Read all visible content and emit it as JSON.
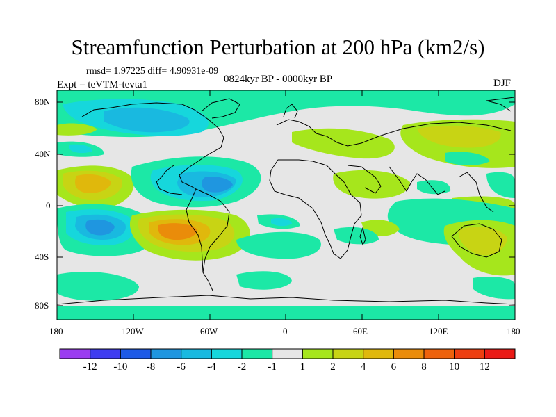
{
  "title": "Streamfunction Perturbation at 200 hPa (km2/s)",
  "stats": "rmsd= 1.97225  diff= 4.90931e-09",
  "period": "0824kyr BP - 0000kyr BP",
  "experiment": "Expt = teVTM-tevta1",
  "season": "DJF",
  "lat_ticks": [
    "80N",
    "40N",
    "0",
    "40S",
    "80S"
  ],
  "lon_ticks": [
    "180",
    "120W",
    "60W",
    "0",
    "60E",
    "120E",
    "180"
  ],
  "colorbar": {
    "labels": [
      "-12",
      "-10",
      "-8",
      "-6",
      "-4",
      "-2",
      "-1",
      "1",
      "2",
      "4",
      "6",
      "8",
      "10",
      "12"
    ],
    "colors": [
      "#9b3cf0",
      "#3f3cf0",
      "#1e5ae6",
      "#1f96e0",
      "#19b9e0",
      "#16d7dc",
      "#1ce8a6",
      "#e6e6e6",
      "#a6e61c",
      "#c8d414",
      "#e0b80c",
      "#ea8c0a",
      "#ee620c",
      "#ee3e10",
      "#ea1a16"
    ]
  },
  "field_colors": {
    "neutral": "#e6e6e6",
    "neg1": "#1ce8a6",
    "neg2": "#16d7dc",
    "neg4": "#19b9e0",
    "neg6": "#1f96e0",
    "pos1": "#a6e61c",
    "pos2": "#c8d414",
    "pos4": "#e0b80c",
    "pos6": "#ea8c0a"
  }
}
